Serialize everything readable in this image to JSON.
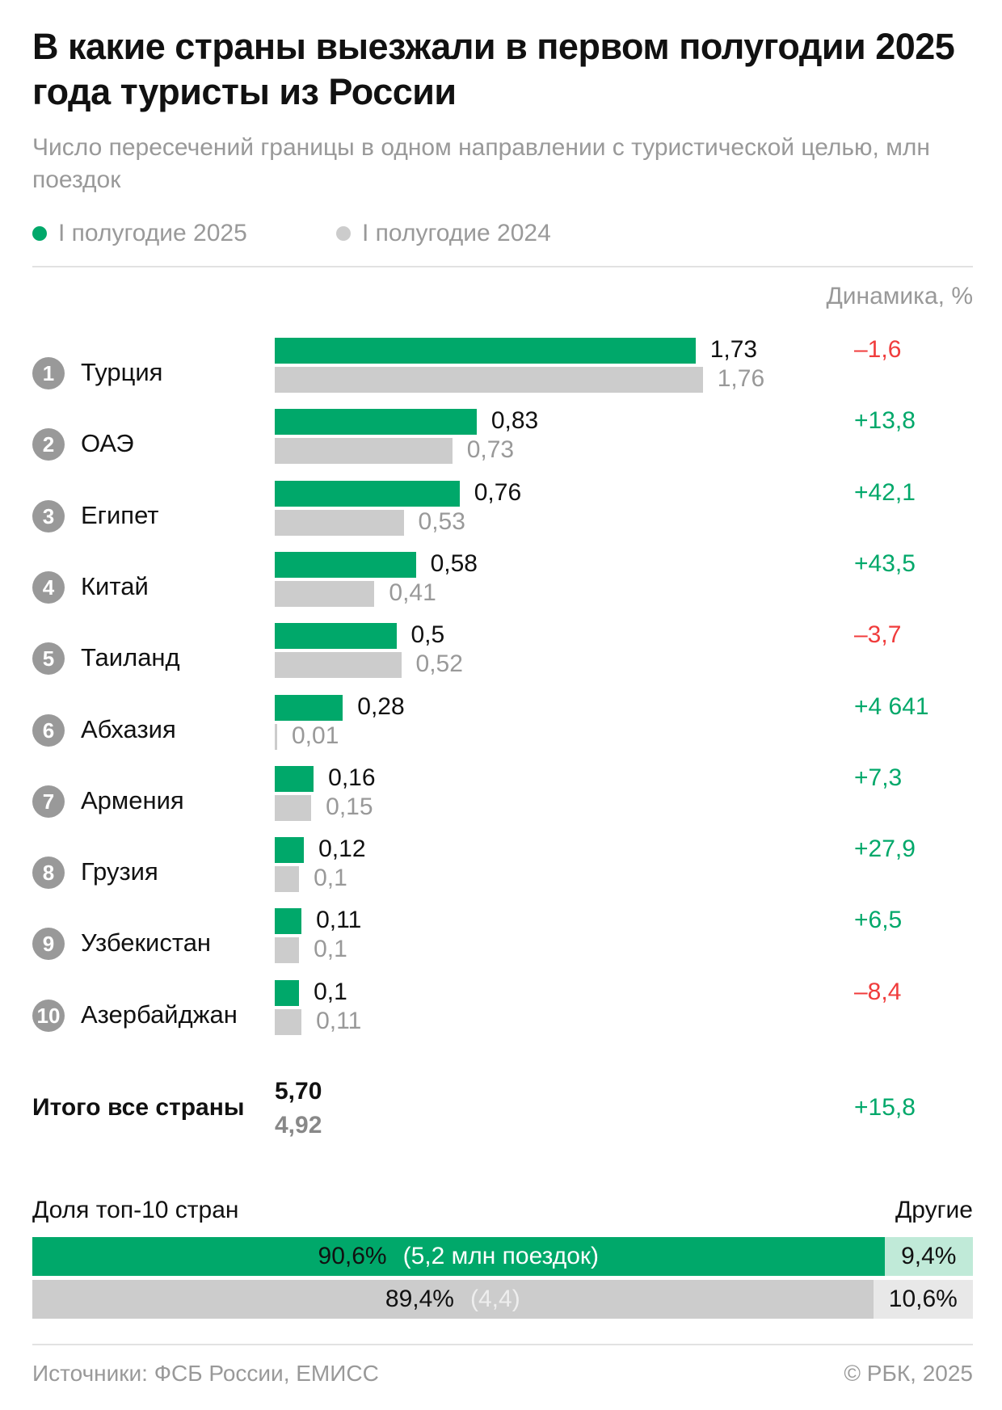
{
  "title": "В какие страны выезжали в первом полугодии 2025 года туристы из России",
  "subtitle": "Число пересечений границы в одном направлении с туристической целью, млн поездок",
  "legend": [
    {
      "label": "I полугодие 2025",
      "color": "#00a86a"
    },
    {
      "label": "I полугодие 2024",
      "color": "#cccccc"
    }
  ],
  "dynamics_header": "Динамика, %",
  "colors": {
    "positive": "#00a86a",
    "negative": "#f03c3c"
  },
  "chart_data": {
    "type": "bar",
    "orientation": "horizontal",
    "categories": [
      "Турция",
      "ОАЭ",
      "Египет",
      "Китай",
      "Таиланд",
      "Абхазия",
      "Армения",
      "Грузия",
      "Узбекистан",
      "Азербайджан"
    ],
    "ranks": [
      "1",
      "2",
      "3",
      "4",
      "5",
      "6",
      "7",
      "8",
      "9",
      "10"
    ],
    "series": [
      {
        "name": "I полугодие 2025",
        "values": [
          1.73,
          0.83,
          0.76,
          0.58,
          0.5,
          0.28,
          0.16,
          0.12,
          0.11,
          0.1
        ],
        "labels": [
          "1,73",
          "0,83",
          "0,76",
          "0,58",
          "0,5",
          "0,28",
          "0,16",
          "0,12",
          "0,11",
          "0,1"
        ]
      },
      {
        "name": "I полугодие 2024",
        "values": [
          1.76,
          0.73,
          0.53,
          0.41,
          0.52,
          0.01,
          0.15,
          0.1,
          0.1,
          0.11
        ],
        "labels": [
          "1,76",
          "0,73",
          "0,53",
          "0,41",
          "0,52",
          "0,01",
          "0,15",
          "0,1",
          "0,1",
          "0,11"
        ]
      }
    ],
    "dynamics": [
      "–1,6",
      "+13,8",
      "+42,1",
      "+43,5",
      "–3,7",
      "+4 641",
      "+7,3",
      "+27,9",
      "+6,5",
      "–8,4"
    ],
    "dynamics_values": [
      -1.6,
      13.8,
      42.1,
      43.5,
      -3.7,
      4641,
      7.3,
      27.9,
      6.5,
      -8.4
    ],
    "unit": "млн поездок"
  },
  "total": {
    "label": "Итого все страны",
    "v2025": "5,70",
    "v2024": "4,92",
    "dynamics": "+15,8"
  },
  "share": {
    "label_top10": "Доля топ-10 стран",
    "label_other": "Другие",
    "rows": [
      {
        "top_pct": 90.6,
        "top_label": "90,6%",
        "top_note": "(5,2 млн поездок)",
        "other_label": "9,4%",
        "top_color": "#00a86a",
        "other_color": "#c0ead8",
        "note_color": "#ffffff"
      },
      {
        "top_pct": 89.4,
        "top_label": "89,4%",
        "top_note": "(4,4)",
        "other_label": "10,6%",
        "top_color": "#cccccc",
        "other_color": "#e8e8e8",
        "note_color": "#eeeeee"
      }
    ]
  },
  "footer": {
    "source": "Источники: ФСБ России, ЕМИСС",
    "copyright": "© РБК, 2025"
  }
}
